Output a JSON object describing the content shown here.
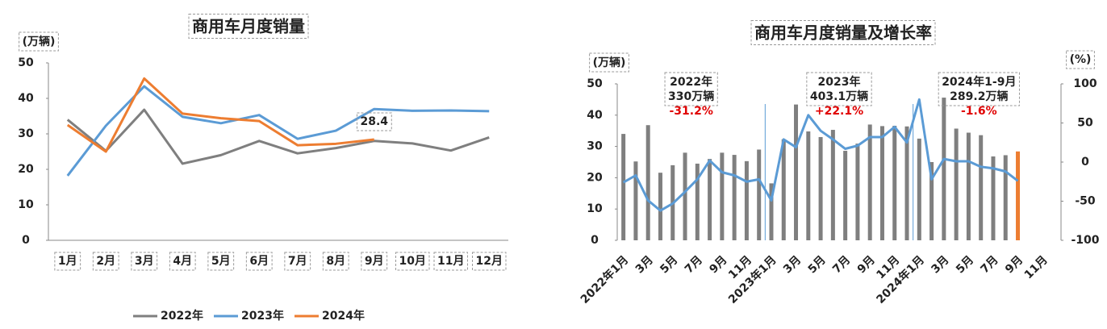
{
  "chart_data": [
    {
      "type": "line",
      "title": "商用车月度销量",
      "y_label": "(万辆)",
      "categories": [
        "1月",
        "2月",
        "3月",
        "4月",
        "5月",
        "6月",
        "7月",
        "8月",
        "9月",
        "10月",
        "11月",
        "12月"
      ],
      "ylim": [
        0,
        50
      ],
      "yticks": [
        0,
        10,
        20,
        30,
        40,
        50
      ],
      "grid": false,
      "legend": "bottom",
      "data_labels": "last",
      "series": [
        {
          "name": "2022年",
          "color": "#7f7f7f",
          "values": [
            34,
            25.2,
            36.8,
            21.6,
            24,
            28,
            24.5,
            26,
            28,
            27.3,
            25.3,
            29
          ]
        },
        {
          "name": "2023年",
          "color": "#5b9bd5",
          "values": [
            18.2,
            32.3,
            43.4,
            34.8,
            33,
            35.3,
            28.6,
            30.9,
            37,
            36.5,
            36.6,
            36.4
          ]
        },
        {
          "name": "2024年",
          "color": "#ed7d31",
          "values": [
            32.5,
            25,
            45.6,
            35.7,
            34.4,
            33.6,
            26.8,
            27.2,
            28.4,
            null,
            null,
            null
          ]
        }
      ]
    },
    {
      "type": "combo",
      "title": "商用车月度销量及增长率",
      "y_label": "(万辆)",
      "y2_label": "(%)",
      "categories": [
        "2022年1月",
        null,
        "3月",
        null,
        "5月",
        null,
        "7月",
        null,
        "9月",
        null,
        "11月",
        null,
        "2023年1月",
        null,
        "3月",
        null,
        "5月",
        null,
        "7月",
        null,
        "9月",
        null,
        "11月",
        null,
        "2024年1月",
        null,
        "3月",
        null,
        "5月",
        null,
        "7月",
        null,
        "9月",
        null,
        "11月",
        null
      ],
      "ylim": [
        0,
        50
      ],
      "yticks": [
        0,
        10,
        20,
        30,
        40,
        50
      ],
      "y2lim": [
        -100,
        100
      ],
      "y2ticks": [
        100,
        50,
        0,
        -50,
        -100
      ],
      "annotations": [
        {
          "lines": [
            "2022年",
            "330万辆",
            "-31.2%"
          ]
        },
        {
          "lines": [
            "2023年",
            "403.1万辆",
            "+22.1%"
          ]
        },
        {
          "lines": [
            "2024年1-9月",
            "289.2万辆",
            "-1.6%"
          ]
        }
      ],
      "series": [
        {
          "type": "bar",
          "color": "#7f7f7f",
          "colors": [
            "#7f7f7f",
            "#7f7f7f",
            "#7f7f7f",
            "#7f7f7f",
            "#7f7f7f",
            "#7f7f7f",
            "#7f7f7f",
            "#7f7f7f",
            "#7f7f7f",
            "#7f7f7f",
            "#7f7f7f",
            "#7f7f7f",
            "#7f7f7f",
            "#7f7f7f",
            "#7f7f7f",
            "#7f7f7f",
            "#7f7f7f",
            "#7f7f7f",
            "#7f7f7f",
            "#7f7f7f",
            "#7f7f7f",
            "#7f7f7f",
            "#7f7f7f",
            "#7f7f7f",
            "#7f7f7f",
            "#7f7f7f",
            "#7f7f7f",
            "#7f7f7f",
            "#7f7f7f",
            "#7f7f7f",
            "#7f7f7f",
            "#7f7f7f",
            "#ed7d31",
            "#7f7f7f",
            "#7f7f7f",
            "#7f7f7f"
          ],
          "values": [
            34,
            25.2,
            36.8,
            21.6,
            24,
            28,
            24.5,
            26,
            28,
            27.3,
            25.3,
            29,
            18.2,
            32.3,
            43.4,
            34.8,
            33,
            35.3,
            28.6,
            30.9,
            37,
            36.5,
            36.6,
            36.4,
            32.5,
            25,
            45.6,
            35.7,
            34.4,
            33.6,
            26.8,
            27.2,
            28.4,
            null,
            null,
            null
          ]
        },
        {
          "type": "line",
          "axis": "y2",
          "color": "#5b9bd5",
          "values": [
            -26,
            -17,
            -49,
            -62,
            -53,
            -38,
            -22,
            2,
            -13,
            -17,
            -25,
            -22,
            -49,
            29,
            19,
            60,
            40,
            29,
            17,
            21,
            32,
            32,
            45,
            25,
            80,
            -22,
            4,
            1,
            1,
            -6,
            -8,
            -12,
            -24,
            null,
            null,
            null
          ]
        }
      ]
    }
  ]
}
